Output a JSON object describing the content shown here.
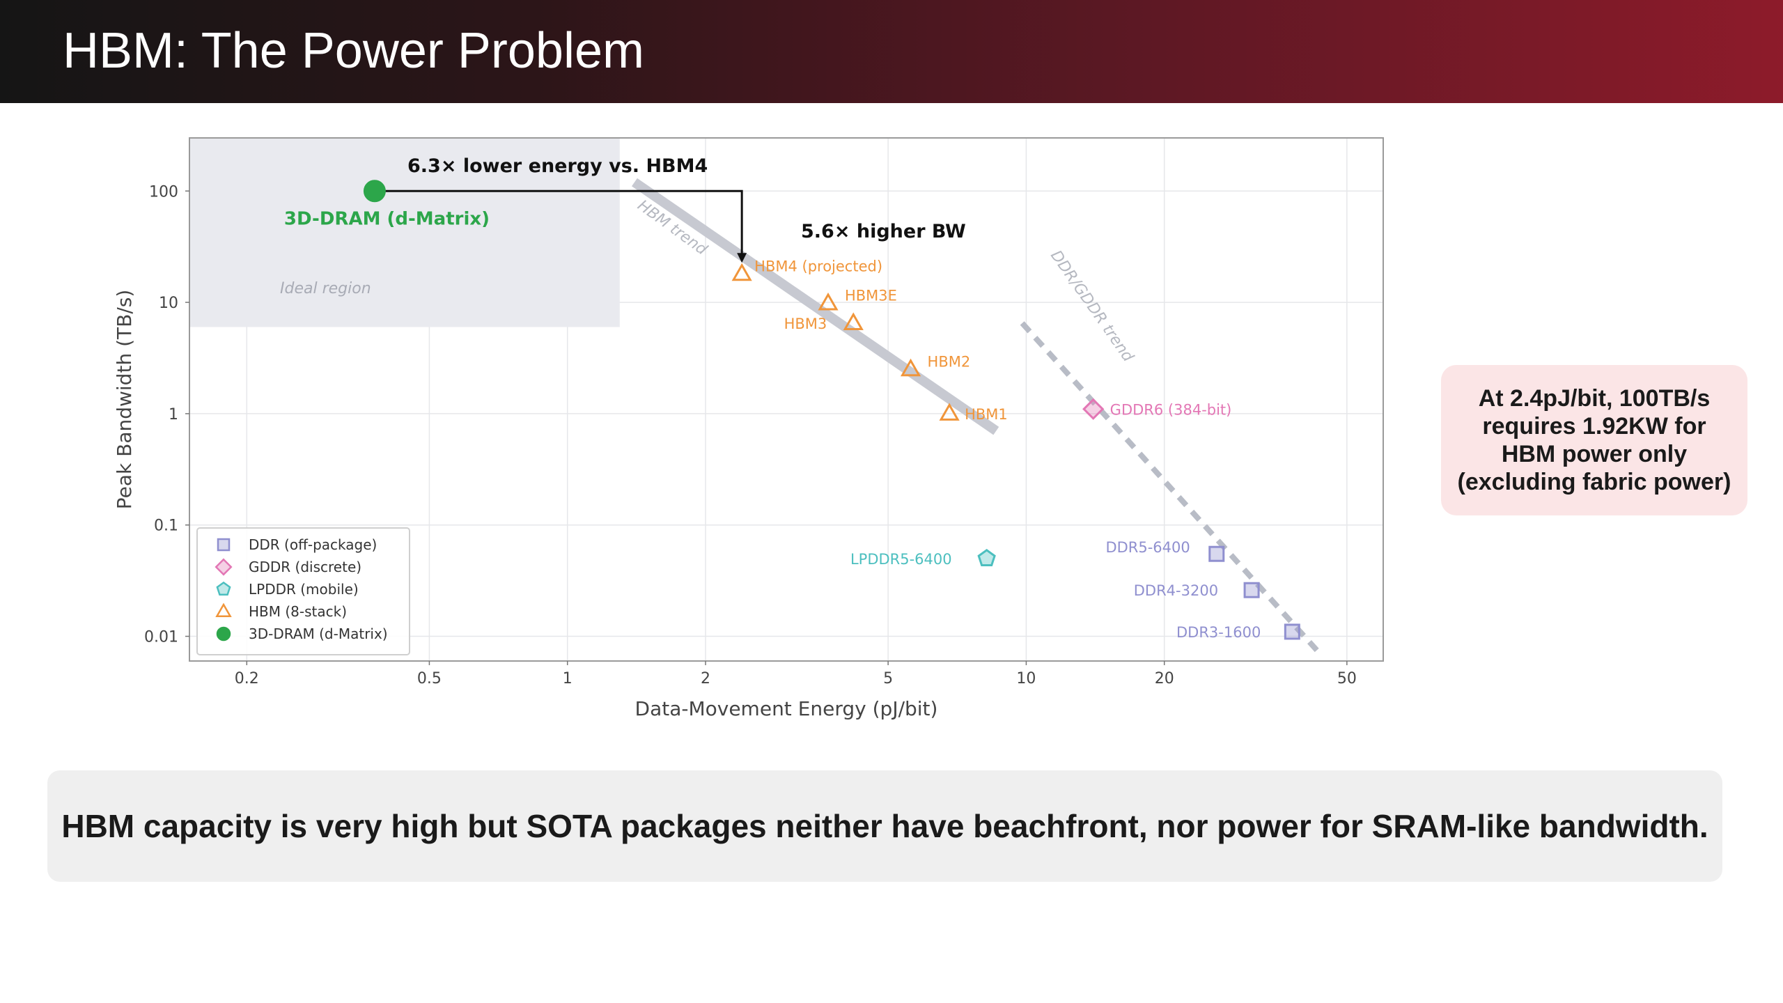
{
  "slide": {
    "title": "HBM: The Power Problem",
    "callout": "At 2.4pJ/bit, 100TB/s requires 1.92KW for HBM power only (excluding fabric power)",
    "footer": "HBM capacity is very high but SOTA packages neither have beachfront, nor power for SRAM-like bandwidth."
  },
  "colors": {
    "header_gradient": [
      "#151515",
      "#8d1b2a"
    ],
    "callout_bg": "#fbe5e6",
    "footer_bg": "#efefef",
    "ddr": "#8f8fcf",
    "gddr": "#e377b5",
    "lpddr": "#4cbfbf",
    "hbm": "#f0953a",
    "dram3d": "#2ca64a"
  },
  "chart_data": {
    "type": "scatter",
    "xscale": "log",
    "yscale": "log",
    "xlabel": "Data-Movement Energy (pJ/bit)",
    "ylabel": "Peak Bandwidth (TB/s)",
    "xlim": [
      0.15,
      60
    ],
    "ylim": [
      0.006,
      300
    ],
    "xticks": [
      {
        "value": 0.2,
        "label": "0.2"
      },
      {
        "value": 0.5,
        "label": "0.5"
      },
      {
        "value": 1,
        "label": "1"
      },
      {
        "value": 2,
        "label": "2"
      },
      {
        "value": 5,
        "label": "5"
      },
      {
        "value": 10,
        "label": "10"
      },
      {
        "value": 20,
        "label": "20"
      },
      {
        "value": 50,
        "label": "50"
      }
    ],
    "yticks": [
      {
        "value": 0.01,
        "label": "0.01"
      },
      {
        "value": 0.1,
        "label": "0.1"
      },
      {
        "value": 1,
        "label": "1"
      },
      {
        "value": 10,
        "label": "10"
      },
      {
        "value": 100,
        "label": "100"
      }
    ],
    "grid": true,
    "legend_position": "bottom-left",
    "series": [
      {
        "name": "DDR (off-package)",
        "marker": "square",
        "color": "#8f8fcf",
        "points": [
          {
            "label": "DDR5-6400",
            "x": 26,
            "y": 0.055
          },
          {
            "label": "DDR4-3200",
            "x": 31,
            "y": 0.026
          },
          {
            "label": "DDR3-1600",
            "x": 38,
            "y": 0.011
          }
        ]
      },
      {
        "name": "GDDR (discrete)",
        "marker": "diamond",
        "color": "#e377b5",
        "points": [
          {
            "label": "GDDR6 (384-bit)",
            "x": 14,
            "y": 1.1
          }
        ]
      },
      {
        "name": "LPDDR (mobile)",
        "marker": "pentagon",
        "color": "#4cbfbf",
        "points": [
          {
            "label": "LPDDR5-6400",
            "x": 8.2,
            "y": 0.05
          }
        ]
      },
      {
        "name": "HBM (8-stack)",
        "marker": "triangle",
        "color": "#f0953a",
        "points": [
          {
            "label": "HBM1",
            "x": 6.8,
            "y": 1.0
          },
          {
            "label": "HBM2",
            "x": 5.6,
            "y": 2.5
          },
          {
            "label": "HBM3",
            "x": 4.2,
            "y": 6.5
          },
          {
            "label": "HBM3E",
            "x": 3.7,
            "y": 9.8
          },
          {
            "label": "HBM4 (projected)",
            "x": 2.4,
            "y": 18
          }
        ]
      },
      {
        "name": "3D-DRAM (d-Matrix)",
        "marker": "circle",
        "color": "#2ca64a",
        "points": [
          {
            "label": "3D-DRAM (d-Matrix)",
            "x": 0.38,
            "y": 100
          }
        ]
      }
    ],
    "trend_lines": [
      {
        "label": "HBM trend",
        "style": "solid",
        "color": "#c7c9d1",
        "from": {
          "x": 1.4,
          "y": 120
        },
        "to": {
          "x": 8.6,
          "y": 0.7
        }
      },
      {
        "label": "DDR/GDDR trend",
        "style": "dashed",
        "color": "#b8bcc6",
        "from": {
          "x": 9.8,
          "y": 6.5
        },
        "to": {
          "x": 43,
          "y": 0.0075
        }
      }
    ],
    "region": {
      "label": "Ideal region",
      "x": [
        0.15,
        1.3
      ],
      "y": [
        6,
        300
      ]
    },
    "annotations": [
      {
        "text": "6.3× lower energy vs. HBM4"
      },
      {
        "text": "5.6× higher BW"
      }
    ]
  }
}
